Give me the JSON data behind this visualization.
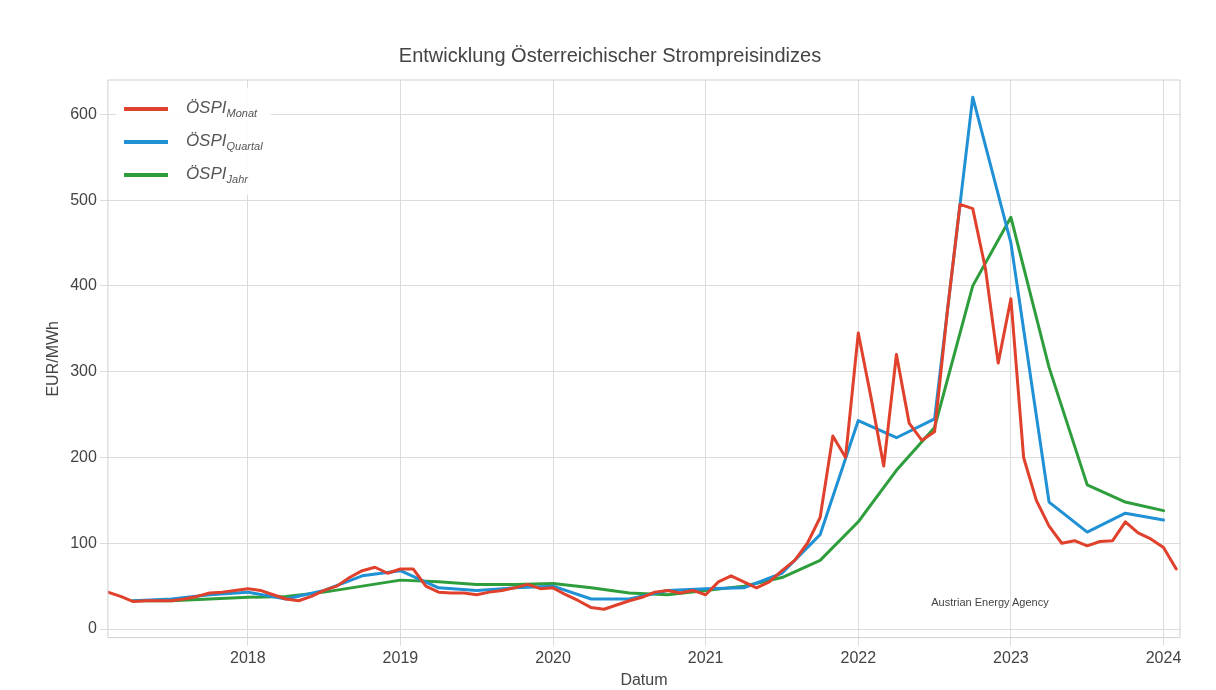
{
  "chart_data": {
    "type": "line",
    "title": "Entwicklung Österreichischer Strompreisindizes",
    "xlabel": "Datum",
    "ylabel": "EUR/MWh",
    "xlim": [
      "2017-02",
      "2024-02-10"
    ],
    "xticks": [
      "2018",
      "2019",
      "2020",
      "2021",
      "2022",
      "2023",
      "2024"
    ],
    "ylim": [
      -10,
      640
    ],
    "yticks": [
      0,
      100,
      200,
      300,
      400,
      500,
      600
    ],
    "grid": true,
    "legend": "top left",
    "marker": "none",
    "line_style": "solid",
    "annotations": [
      "Austrian Energy Agency"
    ],
    "series": [
      {
        "name": "ÖSPI$_{Monat}$",
        "color": "#e0412c",
        "x": [
          "2017-02",
          "2017-03",
          "2017-04",
          "2017-05",
          "2017-06",
          "2017-07",
          "2017-08",
          "2017-09",
          "2017-10",
          "2017-11",
          "2017-12",
          "2018-01",
          "2018-02",
          "2018-03",
          "2018-04",
          "2018-05",
          "2018-06",
          "2018-07",
          "2018-08",
          "2018-09",
          "2018-10",
          "2018-11",
          "2018-12",
          "2019-01",
          "2019-02",
          "2019-03",
          "2019-04",
          "2019-05",
          "2019-06",
          "2019-07",
          "2019-08",
          "2019-09",
          "2019-10",
          "2019-11",
          "2019-12",
          "2020-01",
          "2020-02",
          "2020-03",
          "2020-04",
          "2020-05",
          "2020-06",
          "2020-07",
          "2020-08",
          "2020-09",
          "2020-10",
          "2020-11",
          "2020-12",
          "2021-01",
          "2021-02",
          "2021-03",
          "2021-04",
          "2021-05",
          "2021-06",
          "2021-07",
          "2021-08",
          "2021-09",
          "2021-10",
          "2021-11",
          "2021-12",
          "2022-01",
          "2022-02",
          "2022-03",
          "2022-04",
          "2022-05",
          "2022-06",
          "2022-07",
          "2022-08",
          "2022-09",
          "2022-10",
          "2022-11",
          "2022-12",
          "2023-01",
          "2023-02",
          "2023-03",
          "2023-04",
          "2023-05",
          "2023-06",
          "2023-07",
          "2023-08",
          "2023-09",
          "2023-10",
          "2023-11",
          "2023-12",
          "2024-01",
          "2024-02"
        ],
        "values": [
          43,
          38,
          32,
          33,
          33,
          33,
          35,
          38,
          42,
          43,
          45,
          47,
          45,
          40,
          35,
          33,
          38,
          45,
          50,
          60,
          68,
          72,
          65,
          70,
          70,
          50,
          43,
          42,
          42,
          40,
          43,
          45,
          48,
          52,
          47,
          48,
          40,
          33,
          25,
          23,
          28,
          33,
          37,
          43,
          45,
          42,
          45,
          40,
          55,
          62,
          55,
          48,
          55,
          68,
          80,
          100,
          130,
          225,
          200,
          345,
          270,
          190,
          320,
          240,
          220,
          230,
          370,
          495,
          490,
          420,
          310,
          385,
          200,
          150,
          120,
          100,
          103,
          97,
          102,
          103,
          125,
          112,
          105,
          95,
          70
        ]
      },
      {
        "name": "ÖSPI$_{Quartal}$",
        "color": "#1f91d4",
        "x": [
          "2017-04",
          "2017-07",
          "2017-10",
          "2018-01",
          "2018-04",
          "2018-07",
          "2018-10",
          "2019-01",
          "2019-04",
          "2019-07",
          "2019-10",
          "2020-01",
          "2020-04",
          "2020-07",
          "2020-10",
          "2021-01",
          "2021-04",
          "2021-07",
          "2021-10",
          "2022-01",
          "2022-04",
          "2022-07",
          "2022-10",
          "2023-01",
          "2023-04",
          "2023-07",
          "2023-10",
          "2024-01"
        ],
        "values": [
          33,
          35,
          40,
          43,
          35,
          45,
          62,
          68,
          48,
          45,
          48,
          50,
          35,
          35,
          45,
          47,
          48,
          65,
          110,
          243,
          223,
          245,
          620,
          450,
          148,
          113,
          135,
          127
        ]
      },
      {
        "name": "ÖSPI$_{Jahr}$",
        "color": "#2e9e3c",
        "x": [
          "2017-04",
          "2017-07",
          "2017-10",
          "2018-01",
          "2018-04",
          "2018-07",
          "2018-10",
          "2019-01",
          "2019-04",
          "2019-07",
          "2019-10",
          "2020-01",
          "2020-04",
          "2020-07",
          "2020-10",
          "2021-01",
          "2021-04",
          "2021-07",
          "2021-10",
          "2022-01",
          "2022-04",
          "2022-07",
          "2022-10",
          "2023-01",
          "2023-04",
          "2023-07",
          "2023-10",
          "2024-01"
        ],
        "values": [
          33,
          33,
          35,
          37,
          38,
          43,
          50,
          57,
          55,
          52,
          52,
          53,
          48,
          42,
          40,
          45,
          50,
          60,
          80,
          125,
          185,
          235,
          400,
          480,
          305,
          168,
          148,
          138
        ]
      }
    ]
  }
}
